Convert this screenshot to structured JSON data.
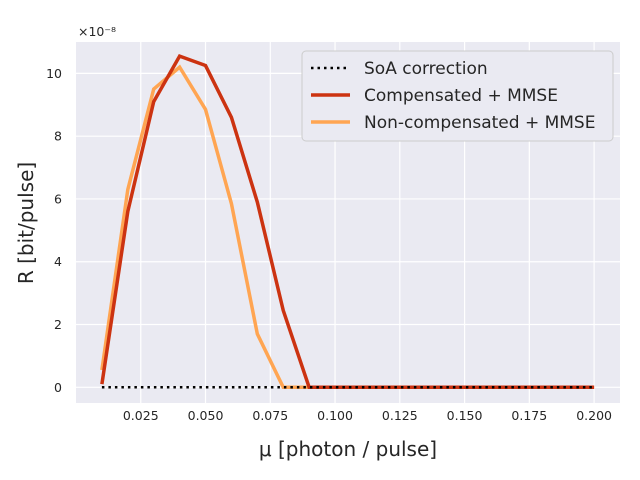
{
  "chart_data": {
    "type": "line",
    "xlabel": "μ [photon / pulse]",
    "ylabel": "R [bit/pulse]",
    "y_offset_label": "×10⁻⁸",
    "xlim": [
      0.0,
      0.21
    ],
    "ylim": [
      -0.5,
      11.0
    ],
    "x_ticks": [
      0.025,
      0.05,
      0.075,
      0.1,
      0.125,
      0.15,
      0.175,
      0.2
    ],
    "x_tick_labels": [
      "0.025",
      "0.050",
      "0.075",
      "0.100",
      "0.125",
      "0.150",
      "0.175",
      "0.200"
    ],
    "y_ticks": [
      0,
      2,
      4,
      6,
      8,
      10
    ],
    "y_tick_labels": [
      "0",
      "2",
      "4",
      "6",
      "8",
      "10"
    ],
    "grid": true,
    "legend_position": "top-right",
    "x": [
      0.01,
      0.02,
      0.03,
      0.04,
      0.05,
      0.06,
      0.07,
      0.08,
      0.09,
      0.1,
      0.11,
      0.12,
      0.13,
      0.14,
      0.15,
      0.16,
      0.17,
      0.18,
      0.19,
      0.2
    ],
    "series": [
      {
        "name": "SoA correction",
        "color": "#000000",
        "style": "dotted",
        "values": [
          0,
          0,
          0,
          0,
          0,
          0,
          0,
          0,
          0,
          0,
          0,
          0,
          0,
          0,
          0,
          0,
          0,
          0,
          0,
          0
        ]
      },
      {
        "name": "Compensated + MMSE",
        "color": "#cc3311",
        "style": "solid",
        "values": [
          0.1,
          5.6,
          9.1,
          10.55,
          10.25,
          8.6,
          5.9,
          2.45,
          0,
          0,
          0,
          0,
          0,
          0,
          0,
          0,
          0,
          0,
          0,
          0
        ]
      },
      {
        "name": "Non-compensated + MMSE",
        "color": "#ffa552",
        "style": "solid",
        "values": [
          0.55,
          6.3,
          9.5,
          10.2,
          8.85,
          5.85,
          1.7,
          0,
          0,
          0,
          0,
          0,
          0,
          0,
          0,
          0,
          0,
          0,
          0,
          0
        ]
      }
    ]
  }
}
